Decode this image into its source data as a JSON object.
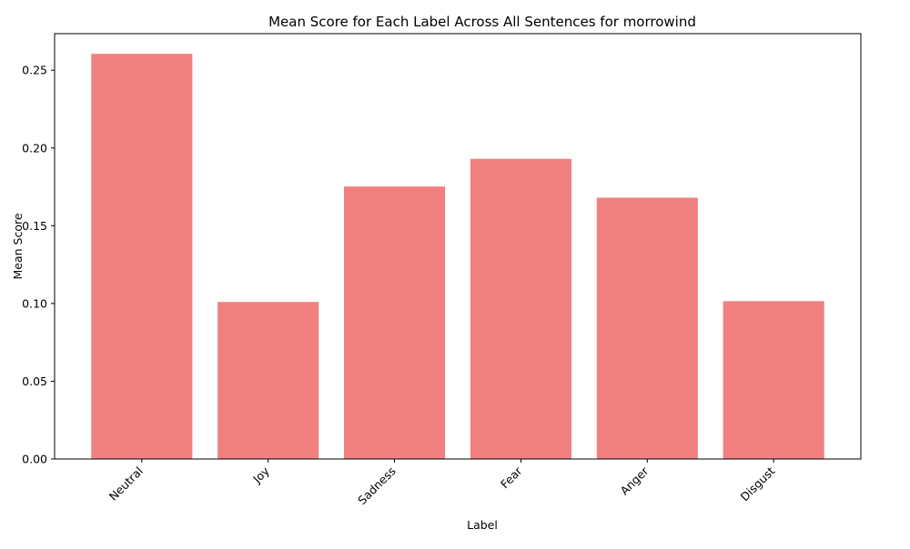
{
  "chart_data": {
    "type": "bar",
    "title": "Mean Score for Each Label Across All Sentences for morrowind",
    "xlabel": "Label",
    "ylabel": "Mean Score",
    "categories": [
      "Neutral",
      "Joy",
      "Sadness",
      "Fear",
      "Anger",
      "Disgust"
    ],
    "values": [
      0.2605,
      0.101,
      0.1752,
      0.193,
      0.168,
      0.1015
    ],
    "ylim": [
      0,
      0.2735
    ],
    "yticks": [
      0.0,
      0.05,
      0.1,
      0.15,
      0.2,
      0.25
    ],
    "ytick_labels": [
      "0.00",
      "0.05",
      "0.10",
      "0.15",
      "0.20",
      "0.25"
    ],
    "bar_color": "#f08080",
    "grid": false,
    "legend": "none"
  }
}
